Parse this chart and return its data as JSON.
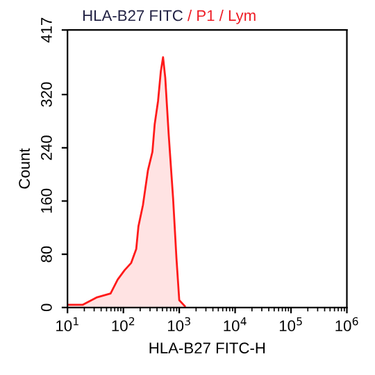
{
  "chart_data": {
    "type": "area",
    "title": "HLA-B27 FITC",
    "subtitle": "/ P1 / Lym",
    "xlabel": "HLA-B27 FITC-H",
    "ylabel": "Count",
    "log": "x",
    "grid": false,
    "legend": false,
    "xlim": [
      10,
      1000000
    ],
    "ylim": [
      0,
      417
    ],
    "xticks": [
      {
        "value": 10,
        "label": "10$^{1}$"
      },
      {
        "value": 100,
        "label": "10$^{2}$"
      },
      {
        "value": 1000,
        "label": "10$^{3}$"
      },
      {
        "value": 10000,
        "label": "10$^{4}$"
      },
      {
        "value": 100000,
        "label": "10$^{5}$"
      },
      {
        "value": 1000000,
        "label": "10$^{6}$"
      }
    ],
    "yticks": [
      0,
      80,
      160,
      240,
      320,
      417
    ],
    "series": [
      {
        "color": "#ff1a1a",
        "x": [
          10.5,
          18.6,
          33,
          59,
          79,
          105,
          138,
          170,
          186,
          224,
          275,
          331,
          363,
          417,
          468,
          513,
          562,
          646,
          776,
          891,
          1000,
          1259
        ],
        "values": [
          4,
          4,
          15,
          21,
          42,
          56,
          67,
          88,
          122,
          154,
          206,
          234,
          275,
          310,
          355,
          376,
          345,
          261,
          164,
          74,
          11,
          2
        ]
      }
    ]
  }
}
